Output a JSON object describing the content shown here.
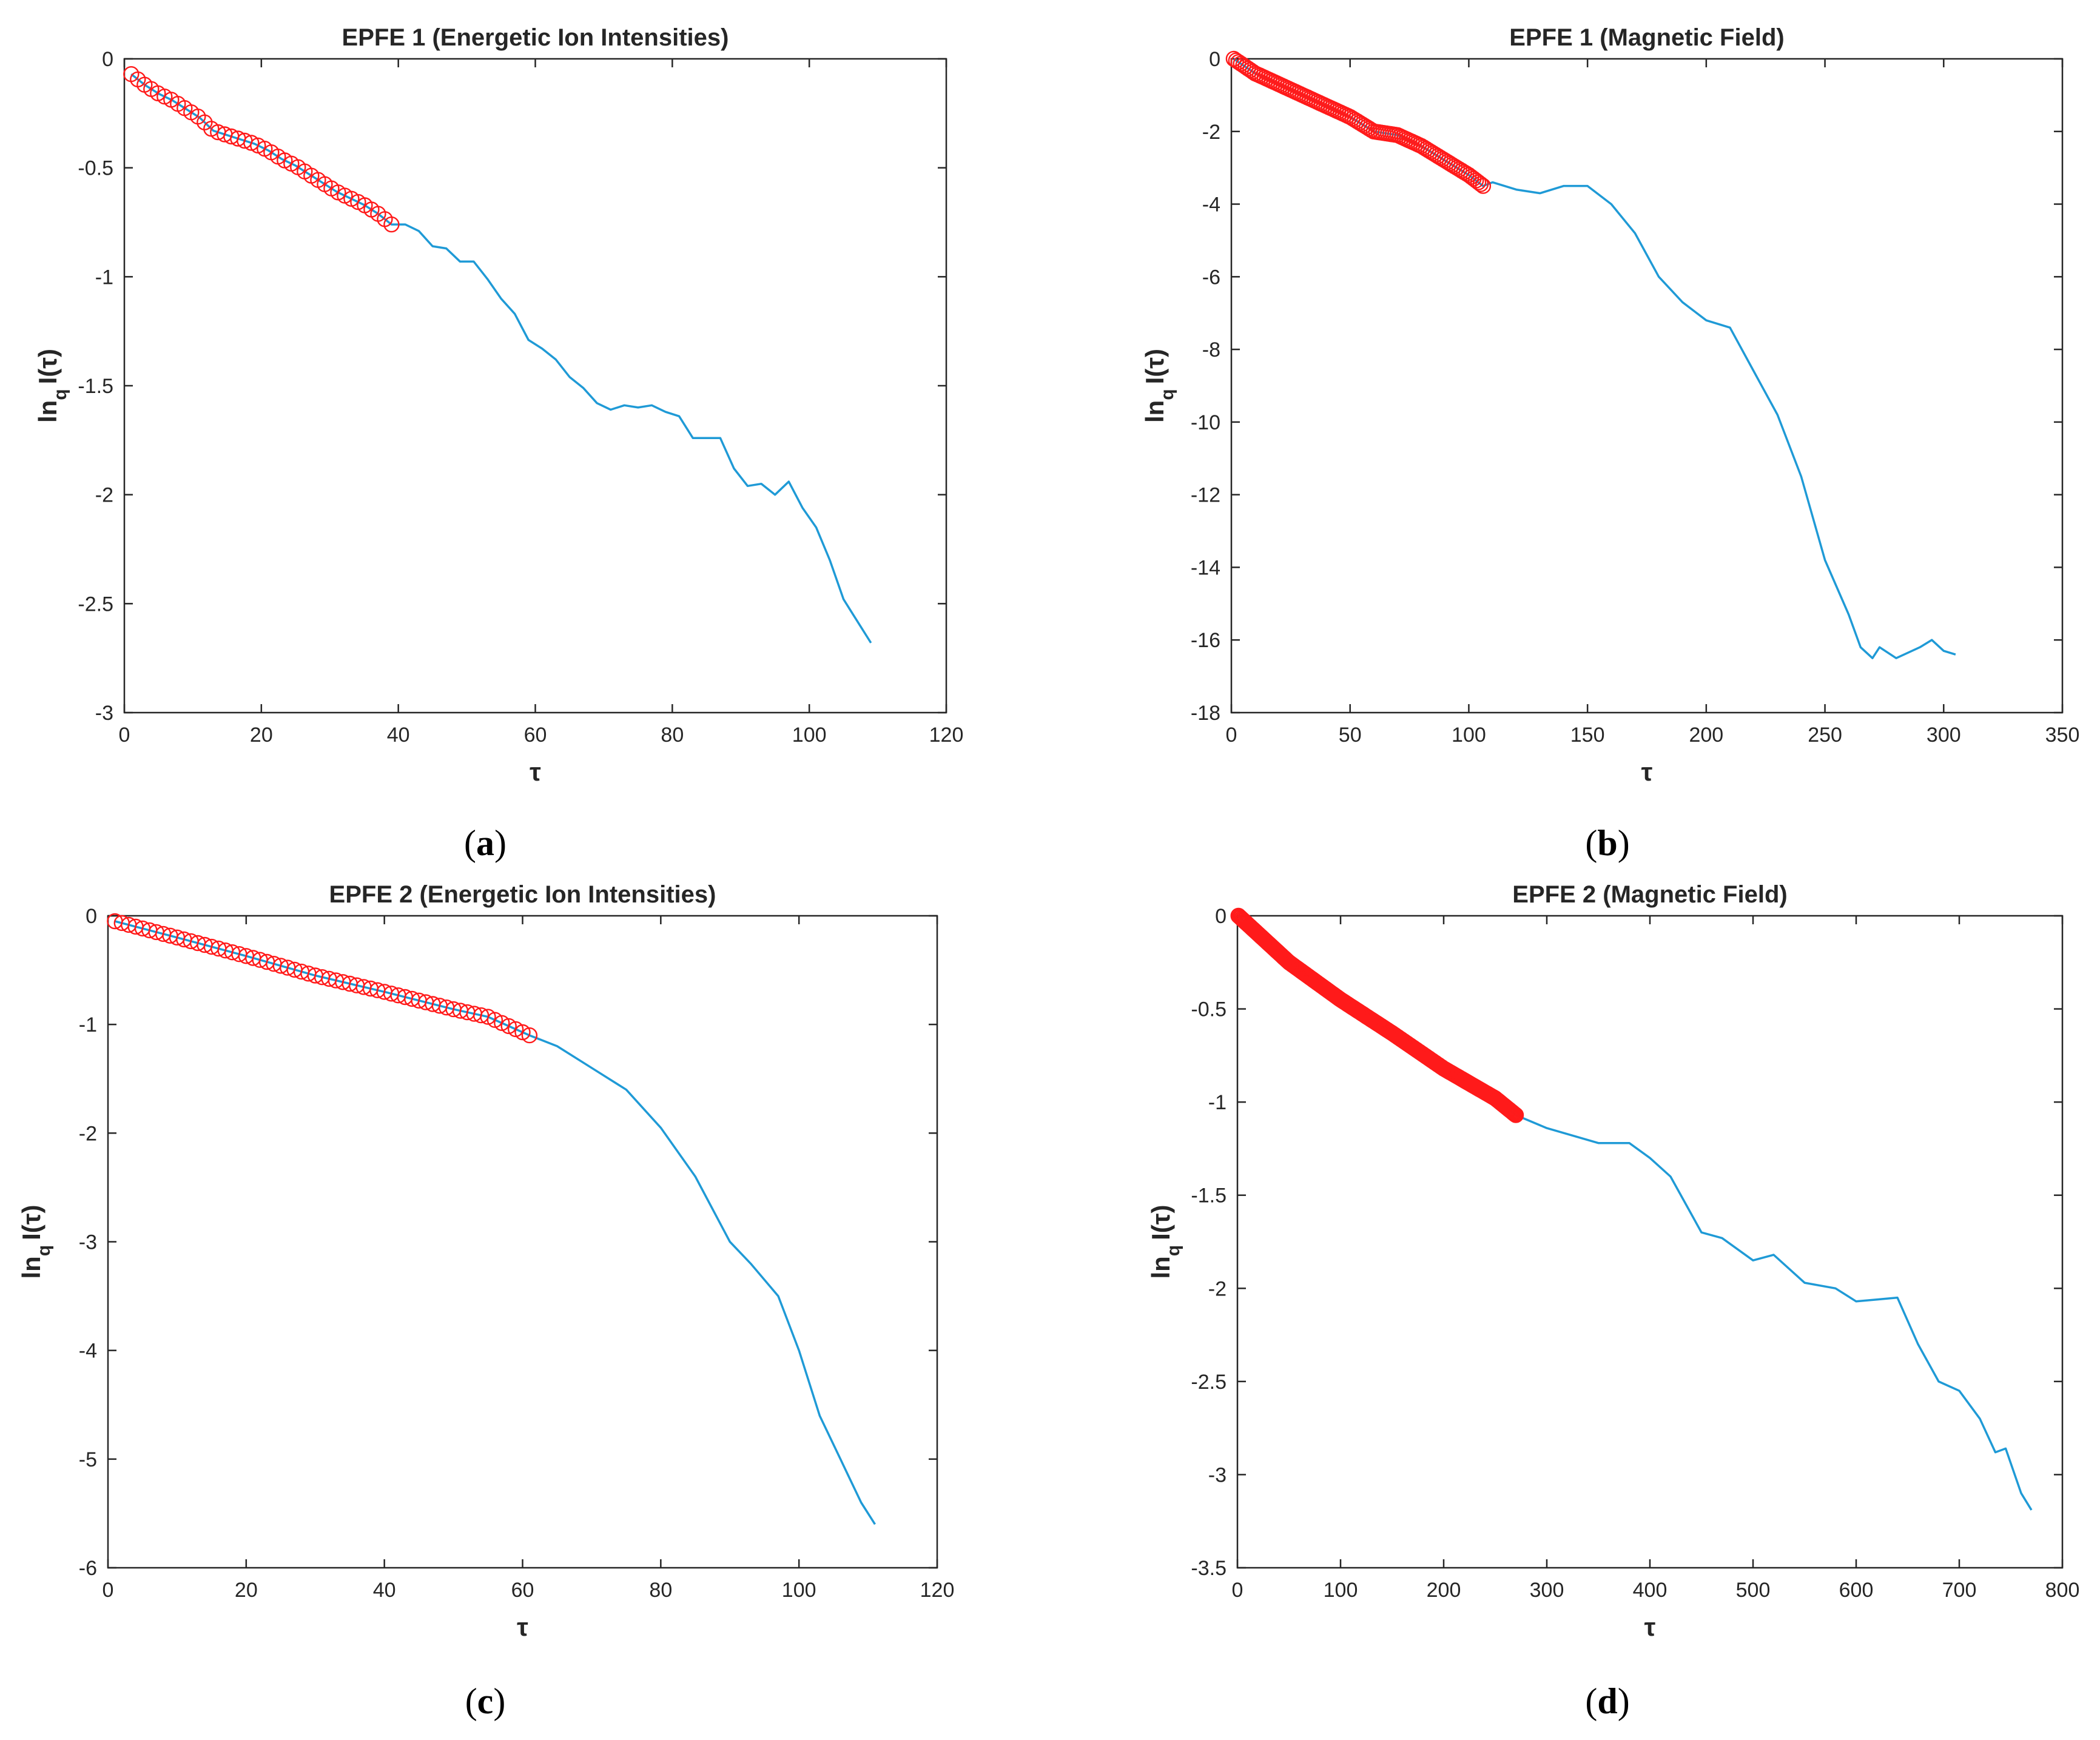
{
  "figure": {
    "panels": [
      "a",
      "b",
      "c",
      "d"
    ]
  },
  "chart_data": [
    {
      "id": "a",
      "type": "line",
      "title": "EPFE 1 (Energetic Ion Intensities)",
      "xlabel": "τ",
      "ylabel_main": "ln",
      "ylabel_sub": "q",
      "ylabel_tail": "I(τ)",
      "caption_letter": "a",
      "xlim": [
        0,
        120
      ],
      "ylim": [
        -3,
        0
      ],
      "xticks": [
        0,
        20,
        40,
        60,
        80,
        100,
        120
      ],
      "yticks": [
        0,
        -0.5,
        -1,
        -1.5,
        -2,
        -2.5,
        -3
      ],
      "xtick_labels": [
        "0",
        "20",
        "40",
        "60",
        "80",
        "100",
        "120"
      ],
      "ytick_labels": [
        "0",
        "-0.5",
        "-1",
        "-1.5",
        "-2",
        "-2.5",
        "-3"
      ],
      "series": [
        {
          "name": "lnq I(τ)",
          "style": "line",
          "color": "#1f9ad6",
          "points": [
            [
              1,
              -0.07
            ],
            [
              3,
              -0.12
            ],
            [
              5,
              -0.16
            ],
            [
              7,
              -0.19
            ],
            [
              9,
              -0.23
            ],
            [
              11,
              -0.27
            ],
            [
              13,
              -0.33
            ],
            [
              15,
              -0.35
            ],
            [
              17,
              -0.37
            ],
            [
              19,
              -0.39
            ],
            [
              21,
              -0.42
            ],
            [
              23,
              -0.46
            ],
            [
              25,
              -0.49
            ],
            [
              27,
              -0.53
            ],
            [
              29,
              -0.57
            ],
            [
              31,
              -0.61
            ],
            [
              33,
              -0.64
            ],
            [
              35,
              -0.67
            ],
            [
              37,
              -0.71
            ],
            [
              39,
              -0.76
            ],
            [
              41,
              -0.76
            ],
            [
              43,
              -0.79
            ],
            [
              45,
              -0.86
            ],
            [
              47,
              -0.87
            ],
            [
              49,
              -0.93
            ],
            [
              51,
              -0.93
            ],
            [
              53,
              -1.01
            ],
            [
              55,
              -1.1
            ],
            [
              57,
              -1.17
            ],
            [
              59,
              -1.29
            ],
            [
              61,
              -1.33
            ],
            [
              63,
              -1.38
            ],
            [
              65,
              -1.46
            ],
            [
              67,
              -1.51
            ],
            [
              69,
              -1.58
            ],
            [
              71,
              -1.61
            ],
            [
              73,
              -1.59
            ],
            [
              75,
              -1.6
            ],
            [
              77,
              -1.59
            ],
            [
              79,
              -1.62
            ],
            [
              81,
              -1.64
            ],
            [
              83,
              -1.74
            ],
            [
              85,
              -1.74
            ],
            [
              87,
              -1.74
            ],
            [
              89,
              -1.88
            ],
            [
              91,
              -1.96
            ],
            [
              93,
              -1.95
            ],
            [
              95,
              -2.0
            ],
            [
              97,
              -1.94
            ],
            [
              99,
              -2.06
            ],
            [
              101,
              -2.15
            ],
            [
              103,
              -2.3
            ],
            [
              105,
              -2.48
            ],
            [
              107,
              -2.58
            ],
            [
              109,
              -2.68
            ]
          ]
        },
        {
          "name": "fit points",
          "style": "markers",
          "color": "#ff1a1a",
          "x_range": [
            1,
            39
          ],
          "y_range": [
            -0.07,
            -0.77
          ],
          "count": 40
        }
      ]
    },
    {
      "id": "b",
      "type": "line",
      "title": "EPFE 1 (Magnetic Field)",
      "xlabel": "τ",
      "ylabel_main": "ln",
      "ylabel_sub": "q",
      "ylabel_tail": "I(τ)",
      "caption_letter": "b",
      "xlim": [
        0,
        350
      ],
      "ylim": [
        -18,
        0
      ],
      "xticks": [
        0,
        50,
        100,
        150,
        200,
        250,
        300,
        350
      ],
      "yticks": [
        0,
        -2,
        -4,
        -6,
        -8,
        -10,
        -12,
        -14,
        -16,
        -18
      ],
      "xtick_labels": [
        "0",
        "50",
        "100",
        "150",
        "200",
        "250",
        "300",
        "350"
      ],
      "ytick_labels": [
        "0",
        "-2",
        "-4",
        "-6",
        "-8",
        "-10",
        "-12",
        "-14",
        "-16",
        "-18"
      ],
      "series": [
        {
          "name": "lnq I(τ)",
          "style": "line",
          "color": "#1f9ad6",
          "points": [
            [
              1,
              0
            ],
            [
              10,
              -0.4
            ],
            [
              20,
              -0.7
            ],
            [
              30,
              -1.0
            ],
            [
              40,
              -1.3
            ],
            [
              50,
              -1.6
            ],
            [
              60,
              -2.0
            ],
            [
              70,
              -2.1
            ],
            [
              80,
              -2.4
            ],
            [
              90,
              -2.8
            ],
            [
              100,
              -3.2
            ],
            [
              106,
              -3.5
            ],
            [
              110,
              -3.4
            ],
            [
              120,
              -3.6
            ],
            [
              130,
              -3.7
            ],
            [
              140,
              -3.5
            ],
            [
              150,
              -3.5
            ],
            [
              160,
              -4.0
            ],
            [
              170,
              -4.8
            ],
            [
              180,
              -6.0
            ],
            [
              190,
              -6.7
            ],
            [
              200,
              -7.2
            ],
            [
              210,
              -7.4
            ],
            [
              220,
              -8.6
            ],
            [
              230,
              -9.8
            ],
            [
              240,
              -11.5
            ],
            [
              250,
              -13.8
            ],
            [
              260,
              -15.3
            ],
            [
              265,
              -16.2
            ],
            [
              270,
              -16.5
            ],
            [
              273,
              -16.2
            ],
            [
              280,
              -16.5
            ],
            [
              290,
              -16.2
            ],
            [
              295,
              -16.0
            ],
            [
              300,
              -16.3
            ],
            [
              305,
              -16.4
            ]
          ]
        },
        {
          "name": "fit points",
          "style": "markers",
          "color": "#ff1a1a",
          "x_range": [
            1,
            106
          ],
          "y_range": [
            0,
            -3.5
          ],
          "count": 106
        }
      ]
    },
    {
      "id": "c",
      "type": "line",
      "title": "EPFE 2 (Energetic Ion Intensities)",
      "xlabel": "τ",
      "ylabel_main": "ln",
      "ylabel_sub": "q",
      "ylabel_tail": "I(τ)",
      "caption_letter": "c",
      "xlim": [
        0,
        120
      ],
      "ylim": [
        -6,
        0
      ],
      "xticks": [
        0,
        20,
        40,
        60,
        80,
        100,
        120
      ],
      "yticks": [
        0,
        -1,
        -2,
        -3,
        -4,
        -5,
        -6
      ],
      "xtick_labels": [
        "0",
        "20",
        "40",
        "60",
        "80",
        "100",
        "120"
      ],
      "ytick_labels": [
        "0",
        "-1",
        "-2",
        "-3",
        "-4",
        "-5",
        "-6"
      ],
      "series": [
        {
          "name": "lnq I(τ)",
          "style": "line",
          "color": "#1f9ad6",
          "points": [
            [
              1,
              -0.05
            ],
            [
              10,
              -0.2
            ],
            [
              20,
              -0.37
            ],
            [
              30,
              -0.55
            ],
            [
              40,
              -0.7
            ],
            [
              50,
              -0.86
            ],
            [
              55,
              -0.93
            ],
            [
              61,
              -1.1
            ],
            [
              65,
              -1.2
            ],
            [
              70,
              -1.4
            ],
            [
              75,
              -1.6
            ],
            [
              80,
              -1.95
            ],
            [
              85,
              -2.4
            ],
            [
              90,
              -3.0
            ],
            [
              93,
              -3.2
            ],
            [
              97,
              -3.5
            ],
            [
              100,
              -4.0
            ],
            [
              103,
              -4.6
            ],
            [
              106,
              -5.0
            ],
            [
              109,
              -5.4
            ],
            [
              111,
              -5.6
            ]
          ]
        },
        {
          "name": "fit points",
          "style": "markers",
          "color": "#ff1a1a",
          "x_range": [
            1,
            61
          ],
          "y_range": [
            -0.05,
            -1.07
          ],
          "count": 61
        }
      ]
    },
    {
      "id": "d",
      "type": "line",
      "title": "EPFE 2 (Magnetic Field)",
      "xlabel": "τ",
      "ylabel_main": "ln",
      "ylabel_sub": "q",
      "ylabel_tail": "I(τ)",
      "caption_letter": "d",
      "xlim": [
        0,
        800
      ],
      "ylim": [
        -3.5,
        0
      ],
      "xticks": [
        0,
        100,
        200,
        300,
        400,
        500,
        600,
        700,
        800
      ],
      "yticks": [
        0,
        -0.5,
        -1,
        -1.5,
        -2,
        -2.5,
        -3,
        -3.5
      ],
      "xtick_labels": [
        "0",
        "100",
        "200",
        "300",
        "400",
        "500",
        "600",
        "700",
        "800"
      ],
      "ytick_labels": [
        "0",
        "-0.5",
        "-1",
        "-1.5",
        "-2",
        "-2.5",
        "-3",
        "-3.5"
      ],
      "series": [
        {
          "name": "lnq I(τ)",
          "style": "line",
          "color": "#1f9ad6",
          "points": [
            [
              1,
              0
            ],
            [
              50,
              -0.25
            ],
            [
              100,
              -0.45
            ],
            [
              150,
              -0.63
            ],
            [
              200,
              -0.82
            ],
            [
              250,
              -0.98
            ],
            [
              270,
              -1.07
            ],
            [
              300,
              -1.14
            ],
            [
              350,
              -1.22
            ],
            [
              380,
              -1.22
            ],
            [
              400,
              -1.3
            ],
            [
              420,
              -1.4
            ],
            [
              450,
              -1.7
            ],
            [
              470,
              -1.73
            ],
            [
              500,
              -1.85
            ],
            [
              520,
              -1.82
            ],
            [
              550,
              -1.97
            ],
            [
              580,
              -2.0
            ],
            [
              600,
              -2.07
            ],
            [
              620,
              -2.06
            ],
            [
              640,
              -2.05
            ],
            [
              660,
              -2.3
            ],
            [
              680,
              -2.5
            ],
            [
              700,
              -2.55
            ],
            [
              720,
              -2.7
            ],
            [
              735,
              -2.88
            ],
            [
              745,
              -2.86
            ],
            [
              760,
              -3.1
            ],
            [
              770,
              -3.19
            ]
          ]
        },
        {
          "name": "fit points",
          "style": "markers",
          "color": "#ff1a1a",
          "x_range": [
            1,
            270
          ],
          "y_range": [
            0,
            -1.08
          ],
          "count": 270
        }
      ]
    }
  ]
}
